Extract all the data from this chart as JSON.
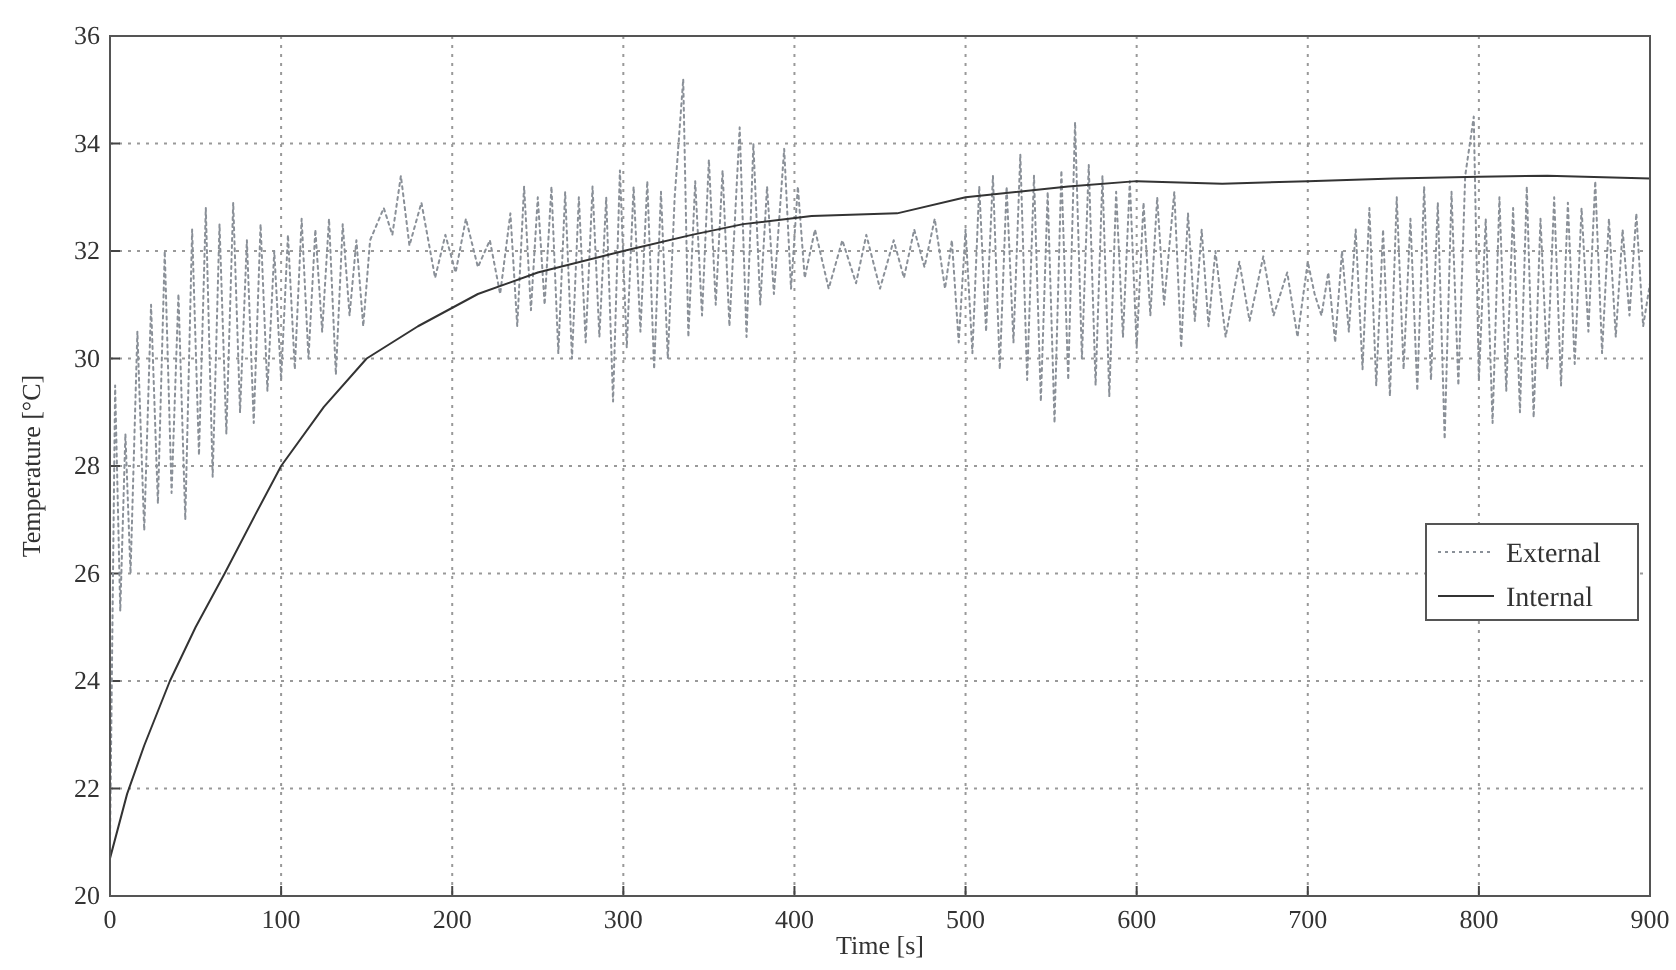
{
  "chart_data": {
    "type": "line",
    "xlabel": "Time [s]",
    "ylabel": "Temperature [°C]",
    "xlim": [
      0,
      900
    ],
    "ylim": [
      20,
      36
    ],
    "xticks": [
      0,
      100,
      200,
      300,
      400,
      500,
      600,
      700,
      800,
      900
    ],
    "yticks": [
      20,
      22,
      24,
      26,
      28,
      30,
      32,
      34,
      36
    ],
    "grid": true,
    "legend": "right",
    "marker": "none",
    "series": [
      {
        "name": "External",
        "color": "#8a9098",
        "line_style": "dotted",
        "x": [
          0,
          3,
          6,
          9,
          12,
          16,
          20,
          24,
          28,
          32,
          36,
          40,
          44,
          48,
          52,
          56,
          60,
          64,
          68,
          72,
          76,
          80,
          84,
          88,
          92,
          96,
          100,
          104,
          108,
          112,
          116,
          120,
          124,
          128,
          132,
          136,
          140,
          144,
          148,
          152,
          160,
          165,
          170,
          175,
          182,
          190,
          196,
          202,
          208,
          215,
          222,
          228,
          234,
          238,
          242,
          246,
          250,
          254,
          258,
          262,
          266,
          270,
          274,
          278,
          282,
          286,
          290,
          294,
          298,
          302,
          306,
          310,
          314,
          318,
          322,
          326,
          330,
          335,
          338,
          342,
          346,
          350,
          354,
          358,
          362,
          368,
          372,
          376,
          380,
          384,
          388,
          394,
          398,
          402,
          406,
          412,
          420,
          428,
          436,
          442,
          450,
          458,
          464,
          470,
          476,
          482,
          488,
          492,
          496,
          500,
          504,
          508,
          512,
          516,
          520,
          524,
          528,
          532,
          536,
          540,
          544,
          548,
          552,
          556,
          560,
          564,
          568,
          572,
          576,
          580,
          584,
          588,
          592,
          596,
          600,
          604,
          608,
          612,
          616,
          622,
          626,
          630,
          634,
          638,
          642,
          646,
          652,
          660,
          666,
          674,
          680,
          688,
          694,
          700,
          704,
          708,
          712,
          716,
          720,
          724,
          728,
          732,
          736,
          740,
          744,
          748,
          752,
          756,
          760,
          764,
          768,
          772,
          776,
          780,
          784,
          788,
          792,
          797,
          800,
          804,
          808,
          812,
          816,
          820,
          824,
          828,
          832,
          836,
          840,
          844,
          848,
          852,
          856,
          860,
          864,
          868,
          872,
          876,
          880,
          884,
          888,
          892,
          896,
          900
        ],
        "values": [
          21,
          29.5,
          25.3,
          28.6,
          26,
          30.5,
          26.8,
          31,
          27.3,
          32,
          27.5,
          31.2,
          27,
          32.4,
          28.2,
          32.8,
          27.8,
          32.5,
          28.6,
          32.9,
          29,
          32.2,
          28.8,
          32.5,
          29.4,
          32,
          29.6,
          32.3,
          29.8,
          32.6,
          30,
          32.4,
          30.5,
          32.6,
          29.7,
          32.5,
          30.8,
          32.2,
          30.6,
          32.2,
          32.8,
          32.3,
          33.4,
          32.1,
          32.9,
          31.5,
          32.3,
          31.6,
          32.6,
          31.7,
          32.2,
          31.2,
          32.7,
          30.6,
          33.2,
          30.9,
          33,
          31,
          33.2,
          30.1,
          33.1,
          30,
          33,
          30.3,
          33.2,
          30.4,
          33,
          29.2,
          33.5,
          30.2,
          33.2,
          30.5,
          33.3,
          29.8,
          33.1,
          30,
          33,
          35.2,
          30.4,
          33.3,
          30.8,
          33.7,
          31,
          33.5,
          30.6,
          34.3,
          30.4,
          34,
          31,
          33.2,
          31.2,
          33.9,
          31.3,
          33.2,
          31.5,
          32.4,
          31.3,
          32.2,
          31.4,
          32.3,
          31.3,
          32.2,
          31.5,
          32.4,
          31.7,
          32.6,
          31.3,
          32.2,
          30.3,
          32.4,
          30.1,
          33.2,
          30.5,
          33.4,
          29.8,
          33.2,
          30.3,
          33.8,
          29.6,
          33.4,
          29.2,
          33.1,
          28.8,
          33.5,
          29.6,
          34.4,
          30,
          33.6,
          29.5,
          33.4,
          29.3,
          33.1,
          30.4,
          33.3,
          30.2,
          32.9,
          30.8,
          33,
          31,
          33.1,
          30.2,
          32.7,
          30.7,
          32.4,
          30.6,
          32,
          30.4,
          31.8,
          30.7,
          31.9,
          30.8,
          31.6,
          30.4,
          31.8,
          31.2,
          30.8,
          31.6,
          30.3,
          32,
          30.5,
          32.4,
          29.8,
          32.8,
          29.5,
          32.4,
          29.3,
          33,
          29.8,
          32.6,
          29.4,
          33.2,
          29.6,
          32.9,
          28.5,
          33.1,
          29.5,
          33.4,
          34.5,
          29.6,
          32.6,
          28.8,
          33,
          29.4,
          32.8,
          29,
          33.2,
          28.9,
          32.6,
          29.8,
          33,
          29.5,
          32.9,
          29.9,
          32.8,
          30.5,
          33.3,
          30.1,
          32.6,
          30.4,
          32.4,
          30.8,
          32.7,
          30.6,
          31.4
        ]
      },
      {
        "name": "Internal",
        "color": "#333333",
        "line_style": "solid",
        "x": [
          0,
          10,
          20,
          35,
          50,
          67,
          85,
          100,
          125,
          150,
          180,
          215,
          250,
          300,
          340,
          370,
          410,
          460,
          500,
          560,
          600,
          650,
          700,
          750,
          800,
          840,
          900
        ],
        "values": [
          20.7,
          21.9,
          22.8,
          24,
          25,
          26,
          27.1,
          28,
          29.1,
          30,
          30.6,
          31.2,
          31.6,
          32,
          32.3,
          32.5,
          32.65,
          32.7,
          33,
          33.2,
          33.3,
          33.25,
          33.3,
          33.35,
          33.38,
          33.4,
          33.35
        ]
      }
    ]
  }
}
